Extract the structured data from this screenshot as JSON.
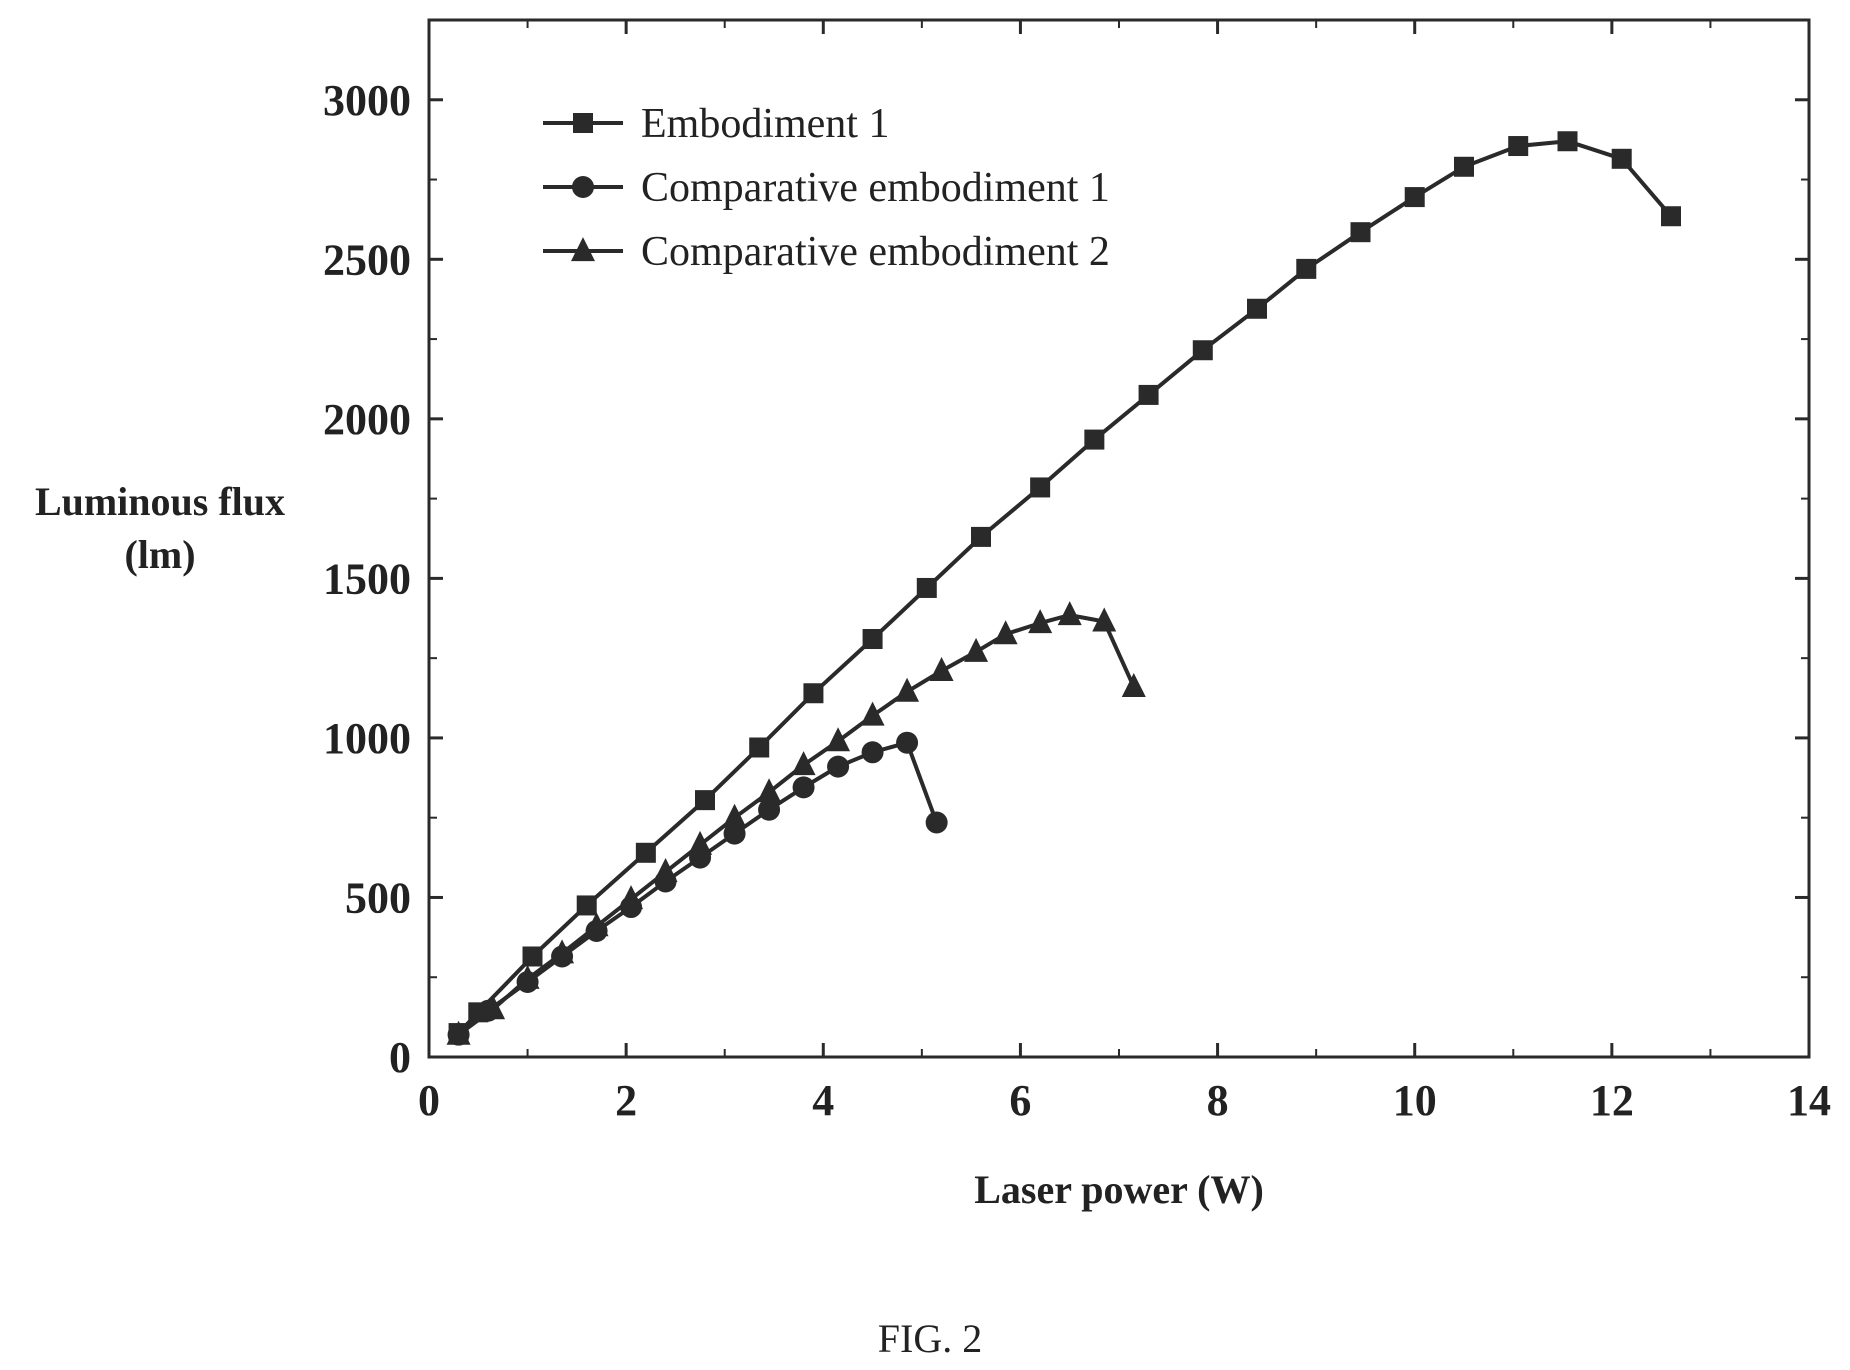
{
  "caption": "FIG. 2",
  "chart_data": {
    "type": "line",
    "title": "",
    "xlabel": "Laser power (W)",
    "ylabel_lines": [
      "Luminous flux",
      "(lm)"
    ],
    "xlim": [
      0,
      14
    ],
    "ylim": [
      0,
      3250
    ],
    "xticks": [
      0,
      2,
      4,
      6,
      8,
      10,
      12,
      14
    ],
    "yticks": [
      0,
      500,
      1000,
      1500,
      2000,
      2500,
      3000
    ],
    "grid": false,
    "legend_position": "top-left",
    "colors": {
      "line": "#2a2a2a",
      "axis": "#2a2a2a"
    },
    "series": [
      {
        "name": "Embodiment 1",
        "marker": "square",
        "x": [
          0.3,
          0.5,
          1.05,
          1.6,
          2.2,
          2.8,
          3.35,
          3.9,
          4.5,
          5.05,
          5.6,
          6.2,
          6.75,
          7.3,
          7.85,
          8.4,
          8.9,
          9.45,
          10.0,
          10.5,
          11.05,
          11.55,
          12.1,
          12.6
        ],
        "y": [
          75,
          140,
          315,
          475,
          640,
          805,
          970,
          1140,
          1310,
          1470,
          1630,
          1785,
          1935,
          2075,
          2215,
          2345,
          2470,
          2585,
          2695,
          2790,
          2855,
          2870,
          2815,
          2635
        ]
      },
      {
        "name": "Comparative embodiment 1",
        "marker": "circle",
        "x": [
          0.3,
          0.6,
          1.0,
          1.35,
          1.7,
          2.05,
          2.4,
          2.75,
          3.1,
          3.45,
          3.8,
          4.15,
          4.5,
          4.85,
          5.15
        ],
        "y": [
          70,
          145,
          235,
          315,
          395,
          470,
          550,
          625,
          700,
          775,
          845,
          910,
          955,
          985,
          735
        ]
      },
      {
        "name": "Comparative embodiment 2",
        "marker": "triangle",
        "x": [
          0.3,
          0.65,
          1.0,
          1.35,
          1.7,
          2.05,
          2.4,
          2.75,
          3.1,
          3.45,
          3.8,
          4.15,
          4.5,
          4.85,
          5.2,
          5.55,
          5.85,
          6.2,
          6.5,
          6.85,
          7.15
        ],
        "y": [
          70,
          150,
          245,
          325,
          410,
          495,
          580,
          665,
          750,
          830,
          915,
          990,
          1070,
          1145,
          1210,
          1270,
          1325,
          1360,
          1385,
          1365,
          1160
        ]
      }
    ]
  }
}
